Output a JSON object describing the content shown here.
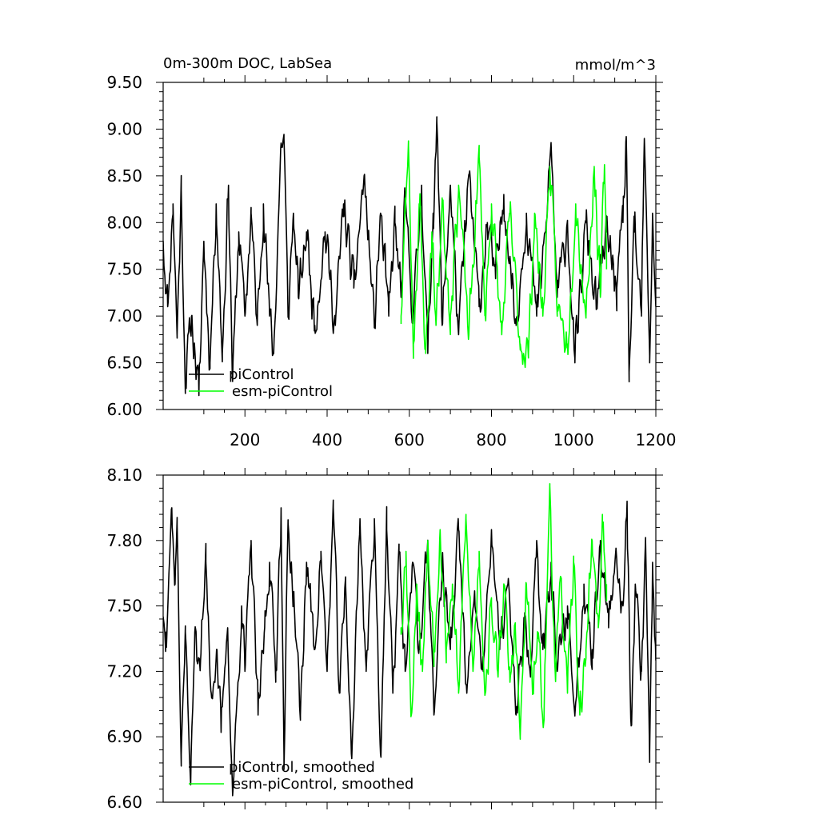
{
  "chart_data": [
    {
      "type": "line",
      "title": "0m-300m DOC, LabSea",
      "units": "mmol/m^3",
      "xlim": [
        1,
        1200
      ],
      "ylim": [
        6.0,
        9.5
      ],
      "x_ticks": [
        200,
        400,
        600,
        800,
        1000,
        1200
      ],
      "x_tick_labels": [
        "200",
        "400",
        "600",
        "800",
        "1000",
        "1200"
      ],
      "y_ticks": [
        6.0,
        6.5,
        7.0,
        7.5,
        8.0,
        8.5,
        9.0,
        9.5
      ],
      "y_tick_labels": [
        "6.00",
        "6.50",
        "7.00",
        "7.50",
        "8.00",
        "8.50",
        "9.00",
        "9.50"
      ],
      "legend_position": "bottom-left",
      "series": [
        {
          "name": "piControl",
          "color": "#000000",
          "x_start": 1,
          "x_end": 1200,
          "anchors": [
            [
              1,
              7.8
            ],
            [
              12,
              7.1
            ],
            [
              25,
              8.2
            ],
            [
              35,
              6.8
            ],
            [
              45,
              8.35
            ],
            [
              55,
              6.3
            ],
            [
              70,
              7.0
            ],
            [
              88,
              6.15
            ],
            [
              100,
              7.8
            ],
            [
              115,
              6.5
            ],
            [
              130,
              8.2
            ],
            [
              145,
              6.6
            ],
            [
              160,
              8.4
            ],
            [
              170,
              6.3
            ],
            [
              185,
              7.9
            ],
            [
              200,
              7.0
            ],
            [
              215,
              8.1
            ],
            [
              230,
              6.9
            ],
            [
              245,
              8.2
            ],
            [
              260,
              7.0
            ],
            [
              270,
              6.6
            ],
            [
              288,
              8.85
            ],
            [
              295,
              8.9
            ],
            [
              305,
              7.0
            ],
            [
              318,
              8.1
            ],
            [
              330,
              7.2
            ],
            [
              350,
              7.9
            ],
            [
              370,
              6.9
            ],
            [
              395,
              7.9
            ],
            [
              420,
              6.9
            ],
            [
              440,
              8.2
            ],
            [
              465,
              7.3
            ],
            [
              490,
              8.5
            ],
            [
              515,
              6.9
            ],
            [
              530,
              8.1
            ],
            [
              550,
              7.0
            ],
            [
              565,
              8.0
            ],
            [
              580,
              7.2
            ],
            [
              590,
              8.2
            ],
            [
              610,
              7.0
            ],
            [
              630,
              8.4
            ],
            [
              645,
              6.6
            ],
            [
              658,
              8.1
            ],
            [
              667,
              9.08
            ],
            [
              680,
              6.9
            ],
            [
              700,
              8.4
            ],
            [
              720,
              6.8
            ],
            [
              745,
              8.5
            ],
            [
              770,
              7.1
            ],
            [
              790,
              8.0
            ],
            [
              810,
              7.4
            ],
            [
              830,
              8.3
            ],
            [
              860,
              6.9
            ],
            [
              885,
              8.1
            ],
            [
              910,
              7.0
            ],
            [
              932,
              7.9
            ],
            [
              945,
              8.85
            ],
            [
              960,
              7.2
            ],
            [
              985,
              8.0
            ],
            [
              1003,
              6.5
            ],
            [
              1030,
              8.0
            ],
            [
              1055,
              7.1
            ],
            [
              1080,
              7.9
            ],
            [
              1105,
              7.3
            ],
            [
              1120,
              8.0
            ],
            [
              1128,
              8.92
            ],
            [
              1135,
              6.4
            ],
            [
              1148,
              7.9
            ],
            [
              1165,
              7.0
            ],
            [
              1172,
              8.9
            ],
            [
              1185,
              6.5
            ],
            [
              1192,
              8.1
            ],
            [
              1200,
              7.1
            ]
          ],
          "amp": 0.3,
          "seed": 11
        },
        {
          "name": "esm-piControl",
          "color": "#00ff00",
          "x_start": 580,
          "x_end": 1080,
          "anchors": [
            [
              580,
              7.0
            ],
            [
              590,
              8.1
            ],
            [
              598,
              8.82
            ],
            [
              610,
              6.7
            ],
            [
              625,
              8.2
            ],
            [
              640,
              6.6
            ],
            [
              655,
              7.9
            ],
            [
              665,
              6.9
            ],
            [
              680,
              8.2
            ],
            [
              700,
              7.0
            ],
            [
              720,
              8.4
            ],
            [
              745,
              6.8
            ],
            [
              770,
              8.7
            ],
            [
              785,
              7.0
            ],
            [
              800,
              8.2
            ],
            [
              825,
              6.8
            ],
            [
              845,
              8.1
            ],
            [
              870,
              6.7
            ],
            [
              890,
              6.6
            ],
            [
              905,
              8.1
            ],
            [
              925,
              7.0
            ],
            [
              942,
              8.6
            ],
            [
              960,
              7.1
            ],
            [
              985,
              6.7
            ],
            [
              1005,
              8.2
            ],
            [
              1030,
              7.0
            ],
            [
              1050,
              8.6
            ],
            [
              1065,
              7.2
            ],
            [
              1075,
              8.62
            ],
            [
              1080,
              7.5
            ]
          ],
          "amp": 0.3,
          "seed": 23
        }
      ]
    },
    {
      "type": "line",
      "xlim": [
        1,
        1200
      ],
      "ylim": [
        6.6,
        8.1
      ],
      "x_ticks": [
        200,
        400,
        600,
        800,
        1000,
        1200
      ],
      "x_tick_labels": [],
      "y_ticks": [
        6.6,
        6.9,
        7.2,
        7.5,
        7.8,
        8.1
      ],
      "y_tick_labels": [
        "6.60",
        "6.90",
        "7.20",
        "7.50",
        "7.80",
        "8.10"
      ],
      "legend_position": "bottom-left",
      "series": [
        {
          "name": "piControl, smoothed",
          "color": "#000000",
          "x_start": 1,
          "x_end": 1200,
          "anchors": [
            [
              1,
              7.45
            ],
            [
              8,
              7.38
            ],
            [
              22,
              7.95
            ],
            [
              30,
              7.6
            ],
            [
              35,
              7.87
            ],
            [
              45,
              6.82
            ],
            [
              55,
              7.38
            ],
            [
              68,
              6.68
            ],
            [
              78,
              7.38
            ],
            [
              92,
              7.25
            ],
            [
              105,
              7.7
            ],
            [
              118,
              7.1
            ],
            [
              132,
              7.3
            ],
            [
              142,
              6.92
            ],
            [
              158,
              7.4
            ],
            [
              170,
              6.63
            ],
            [
              182,
              7.1
            ],
            [
              192,
              7.5
            ],
            [
              200,
              7.2
            ],
            [
              215,
              7.8
            ],
            [
              232,
              7.0
            ],
            [
              248,
              7.4
            ],
            [
              260,
              7.7
            ],
            [
              275,
              7.2
            ],
            [
              288,
              7.95
            ],
            [
              295,
              6.75
            ],
            [
              305,
              7.88
            ],
            [
              320,
              7.5
            ],
            [
              335,
              7.0
            ],
            [
              350,
              7.7
            ],
            [
              370,
              7.3
            ],
            [
              385,
              7.75
            ],
            [
              400,
              7.2
            ],
            [
              415,
              7.95
            ],
            [
              430,
              7.1
            ],
            [
              445,
              7.6
            ],
            [
              460,
              6.8
            ],
            [
              480,
              7.9
            ],
            [
              495,
              7.2
            ],
            [
              515,
              7.9
            ],
            [
              530,
              6.82
            ],
            [
              545,
              7.85
            ],
            [
              560,
              7.1
            ],
            [
              575,
              7.75
            ],
            [
              590,
              7.2
            ],
            [
              608,
              7.7
            ],
            [
              625,
              7.3
            ],
            [
              645,
              7.8
            ],
            [
              660,
              7.0
            ],
            [
              680,
              7.7
            ],
            [
              700,
              7.3
            ],
            [
              720,
              7.85
            ],
            [
              740,
              7.1
            ],
            [
              760,
              7.5
            ],
            [
              780,
              7.2
            ],
            [
              800,
              7.85
            ],
            [
              820,
              7.3
            ],
            [
              840,
              7.6
            ],
            [
              860,
              7.0
            ],
            [
              880,
              7.4
            ],
            [
              895,
              7.2
            ],
            [
              910,
              7.8
            ],
            [
              925,
              7.3
            ],
            [
              945,
              7.7
            ],
            [
              960,
              7.2
            ],
            [
              985,
              7.5
            ],
            [
              1003,
              7.0
            ],
            [
              1025,
              7.6
            ],
            [
              1045,
              7.3
            ],
            [
              1065,
              7.8
            ],
            [
              1085,
              7.4
            ],
            [
              1105,
              7.7
            ],
            [
              1120,
              7.5
            ],
            [
              1130,
              7.98
            ],
            [
              1140,
              6.95
            ],
            [
              1150,
              7.6
            ],
            [
              1165,
              7.2
            ],
            [
              1175,
              7.8
            ],
            [
              1185,
              6.83
            ],
            [
              1192,
              7.7
            ],
            [
              1200,
              7.25
            ]
          ],
          "amp": 0.12,
          "seed": 37
        },
        {
          "name": "esm-piControl, smoothed",
          "color": "#00ff00",
          "x_start": 580,
          "x_end": 1080,
          "anchors": [
            [
              580,
              7.4
            ],
            [
              592,
              7.75
            ],
            [
              605,
              7.0
            ],
            [
              618,
              7.6
            ],
            [
              632,
              7.2
            ],
            [
              645,
              7.8
            ],
            [
              660,
              7.3
            ],
            [
              675,
              7.85
            ],
            [
              690,
              7.3
            ],
            [
              705,
              7.6
            ],
            [
              720,
              7.1
            ],
            [
              738,
              7.9
            ],
            [
              755,
              7.2
            ],
            [
              770,
              7.75
            ],
            [
              785,
              7.1
            ],
            [
              800,
              7.5
            ],
            [
              815,
              7.2
            ],
            [
              830,
              7.6
            ],
            [
              845,
              7.15
            ],
            [
              858,
              7.4
            ],
            [
              870,
              6.9
            ],
            [
              885,
              7.6
            ],
            [
              900,
              7.1
            ],
            [
              912,
              7.35
            ],
            [
              928,
              7.0
            ],
            [
              942,
              8.05
            ],
            [
              955,
              7.2
            ],
            [
              970,
              7.6
            ],
            [
              985,
              7.1
            ],
            [
              1000,
              7.7
            ],
            [
              1015,
              7.0
            ],
            [
              1030,
              7.3
            ],
            [
              1045,
              7.8
            ],
            [
              1060,
              7.4
            ],
            [
              1070,
              7.88
            ],
            [
              1080,
              7.6
            ]
          ],
          "amp": 0.12,
          "seed": 53
        }
      ]
    }
  ]
}
